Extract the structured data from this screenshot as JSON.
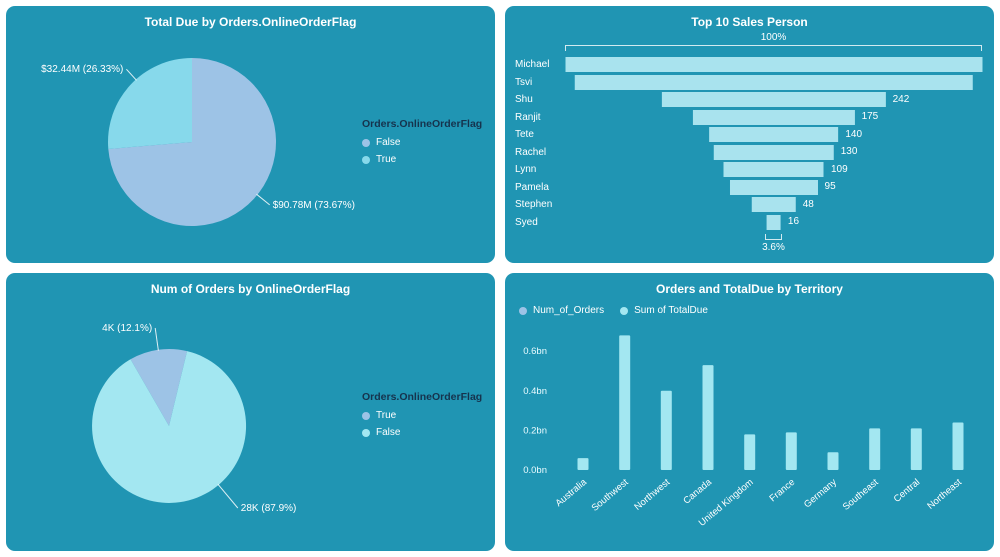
{
  "theme": {
    "panel_bg": "#2095b3",
    "title_color": "#ffffff",
    "pale_blue": "#9dc3e6",
    "light_cyan": "#a3e7f1",
    "legend_title_color": "#16334d"
  },
  "chart_data": [
    {
      "type": "pie",
      "title": "Total Due by Orders.OnlineOrderFlag",
      "legend_title": "Orders.OnlineOrderFlag",
      "legend_position": "right",
      "legend": [
        {
          "label": "False",
          "color": "#9dc3e6"
        },
        {
          "label": "True",
          "color": "#87d9eb"
        }
      ],
      "start_angle": 0,
      "slices": [
        {
          "name": "False",
          "label": "$90.78M (73.67%)",
          "value": 73.67,
          "color": "#9dc3e6",
          "label_angle": 129,
          "label_r": 16
        },
        {
          "name": "True",
          "label": "$32.44M (26.33%)",
          "value": 26.33,
          "color": "#87d9eb",
          "label_angle": 318,
          "label_r": 14
        }
      ]
    },
    {
      "type": "funnel",
      "title": "Top 10 Sales Person",
      "top_label": "100%",
      "bottom_label": "3.6%",
      "bar_color": "#a9e3ee",
      "rows": [
        {
          "label": "Michael",
          "value": 450,
          "display": ""
        },
        {
          "label": "Tsvi",
          "value": 430,
          "display": ""
        },
        {
          "label": "Shu",
          "value": 242,
          "display": "242"
        },
        {
          "label": "Ranjit",
          "value": 175,
          "display": "175"
        },
        {
          "label": "Tete",
          "value": 140,
          "display": "140"
        },
        {
          "label": "Rachel",
          "value": 130,
          "display": "130"
        },
        {
          "label": "Lynn",
          "value": 109,
          "display": "109"
        },
        {
          "label": "Pamela",
          "value": 95,
          "display": "95"
        },
        {
          "label": "Stephen",
          "value": 48,
          "display": "48"
        },
        {
          "label": "Syed",
          "value": 16,
          "display": "16"
        }
      ]
    },
    {
      "type": "pie",
      "title": "Num of Orders by OnlineOrderFlag",
      "legend_title": "Orders.OnlineOrderFlag",
      "legend_position": "right",
      "legend": [
        {
          "label": "True",
          "color": "#9dc3e6"
        },
        {
          "label": "False",
          "color": "#a3e7f1"
        }
      ],
      "start_angle": -30,
      "slices": [
        {
          "name": "True",
          "label": "4K (12.1%)",
          "value": 12.1,
          "color": "#9dc3e6",
          "label_angle": 352,
          "label_r": 22
        },
        {
          "name": "False",
          "label": "28K (87.9%)",
          "value": 87.9,
          "color": "#a3e7f1",
          "label_angle": 140,
          "label_r": 30
        }
      ]
    },
    {
      "type": "bar",
      "title": "Orders and TotalDue by Territory",
      "legend_position": "top-left",
      "legend": [
        {
          "label": "Num_of_Orders",
          "color": "#9dc3e6"
        },
        {
          "label": "Sum of TotalDue",
          "color": "#a3e7f1"
        }
      ],
      "categories": [
        "Australia",
        "Southwest",
        "Northwest",
        "Canada",
        "United Kingdom",
        "France",
        "Germany",
        "Southeast",
        "Central",
        "Northeast"
      ],
      "series": [
        {
          "name": "Sum of TotalDue",
          "color": "#a3e7f1",
          "values": [
            0.06,
            0.68,
            0.4,
            0.53,
            0.18,
            0.19,
            0.09,
            0.21,
            0.21,
            0.24
          ]
        }
      ],
      "ylim": [
        0,
        0.72
      ],
      "grid": false,
      "yticks": [
        {
          "v": 0.0,
          "label": "0.0bn"
        },
        {
          "v": 0.2,
          "label": "0.2bn"
        },
        {
          "v": 0.4,
          "label": "0.4bn"
        },
        {
          "v": 0.6,
          "label": "0.6bn"
        }
      ]
    }
  ]
}
